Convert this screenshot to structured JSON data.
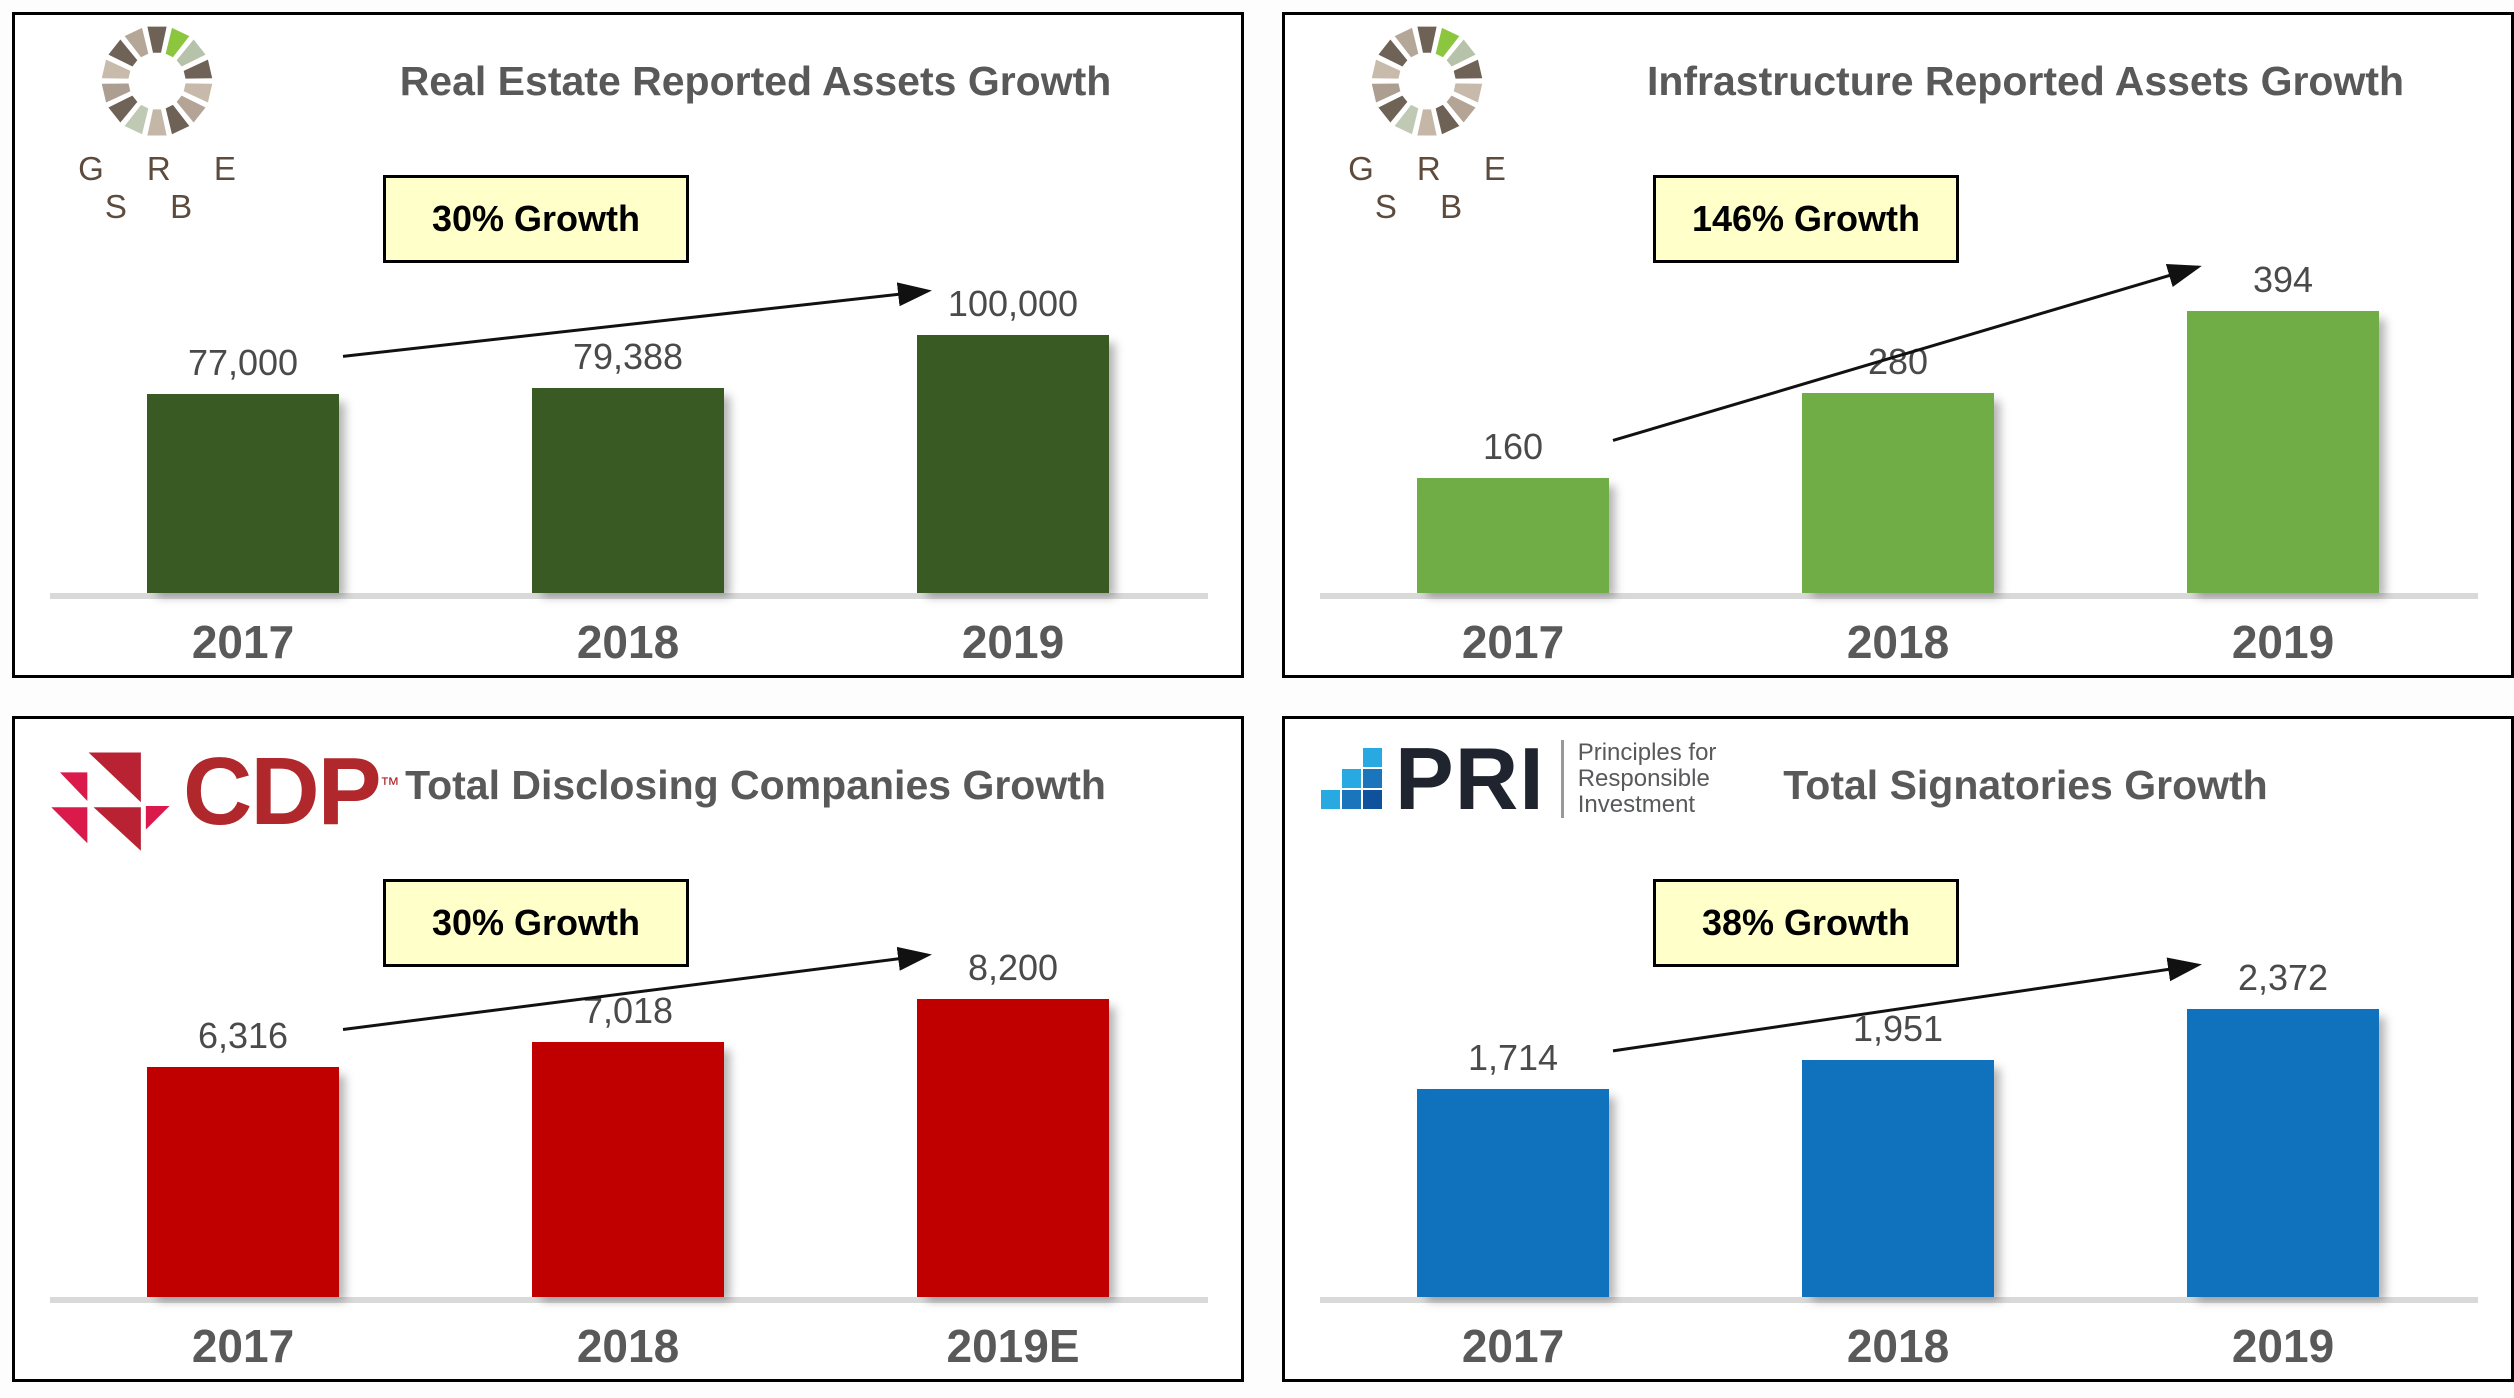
{
  "chart_data": [
    {
      "type": "bar",
      "title": "Real Estate Reported Assets Growth",
      "annotation": "30% Growth",
      "categories": [
        "2017",
        "2018",
        "2019"
      ],
      "values": [
        77000,
        79388,
        100000
      ],
      "value_labels": [
        "77,000",
        "79,388",
        "100,000"
      ],
      "bar_color": "#3A5A23",
      "logo": "gresb",
      "grid": false,
      "legend": false
    },
    {
      "type": "bar",
      "title": "Infrastructure Reported Assets Growth",
      "annotation": "146% Growth",
      "categories": [
        "2017",
        "2018",
        "2019"
      ],
      "values": [
        160,
        280,
        394
      ],
      "value_labels": [
        "160",
        "280",
        "394"
      ],
      "bar_color": "#70AD47",
      "logo": "gresb",
      "grid": false,
      "legend": false
    },
    {
      "type": "bar",
      "title": "Total Disclosing Companies Growth",
      "annotation": "30% Growth",
      "categories": [
        "2017",
        "2018",
        "2019E"
      ],
      "values": [
        6316,
        7018,
        8200
      ],
      "value_labels": [
        "6,316",
        "7,018",
        "8,200"
      ],
      "bar_color": "#C00000",
      "logo": "cdp",
      "grid": false,
      "legend": false
    },
    {
      "type": "bar",
      "title": "Total Signatories Growth",
      "annotation": "38% Growth",
      "categories": [
        "2017",
        "2018",
        "2019"
      ],
      "values": [
        1714,
        1951,
        2372
      ],
      "value_labels": [
        "1,714",
        "1,951",
        "2,372"
      ],
      "bar_color": "#1072BD",
      "logo": "pri",
      "grid": false,
      "legend": false
    }
  ],
  "logos": {
    "gresb": {
      "wordmark": "G R E S B",
      "ring_colors": [
        "#6E6156",
        "#8CC63F",
        "#B7C2AB",
        "#6F6257",
        "#C8BAAB",
        "#B3A496",
        "#6E6156",
        "#C5B7A8",
        "#BFC9B4",
        "#6F6257",
        "#AC9E90",
        "#C9BBAC",
        "#6F6257",
        "#B5A798"
      ]
    },
    "cdp": {
      "wordmark": "CDP",
      "trademark": "™",
      "dark_red": "#B92233",
      "crimson": "#DB1A4C",
      "text_color": "#B0272C"
    },
    "pri": {
      "wordmark": "PRI",
      "tagline_lines": [
        "Principles for",
        "Responsible",
        "Investment"
      ],
      "square_light": "#29A9E1",
      "square_mid": "#1B75BC",
      "square_dark": "#10519E",
      "text_color": "#20242E"
    }
  },
  "style": {
    "annotation_bg": "#FFFFC9",
    "axis_color": "#D9D9D9",
    "title_color": "#595959",
    "arrow_color": "#111111"
  }
}
